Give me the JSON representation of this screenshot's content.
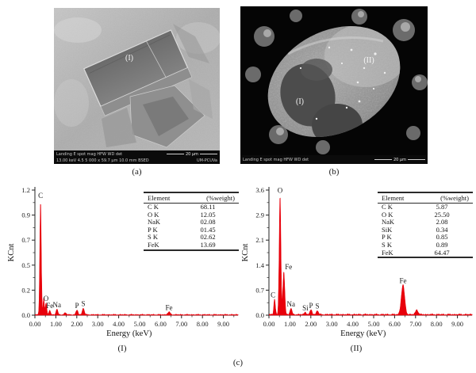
{
  "figure": {
    "caption_a": "(a)",
    "caption_b": "(b)",
    "caption_c": "(c)",
    "caption_spectrum_1": "(I)",
    "caption_spectrum_2": "(II)",
    "panel_a": {
      "region_label": "(I)",
      "databar": {
        "line1": "Landing E spot   mag      HFW      WD     det",
        "line2": "13.00 keV  4.5  5 000 x  59.7 μm  10.0 mm  BSED",
        "credit": "UM-PCUVa",
        "scalebar": "20 μm"
      }
    },
    "panel_b": {
      "region_label_1": "(I)",
      "region_label_2": "(II)",
      "databar": {
        "line1": "Landing E spot   mag      HFW      WD     det",
        "scalebar": "20 μm"
      }
    }
  },
  "chart_data": [
    {
      "type": "area",
      "panel": "(I)",
      "xlabel": "Energy (keV)",
      "ylabel": "KCnt",
      "x_ticks": [
        "0.00",
        "1.00",
        "2.00",
        "3.00",
        "4.00",
        "5.00",
        "6.00",
        "7.00",
        "8.00",
        "9.00"
      ],
      "y_ticks": [
        "0.0",
        "0.2",
        "0.5",
        "0.7",
        "0.9",
        "1.2"
      ],
      "xlim": [
        0,
        9.7
      ],
      "ylim": [
        0,
        1.2
      ],
      "grid": false,
      "line_color": "#e8000b",
      "baseline_noise": 0.008,
      "peaks": [
        {
          "label": "C",
          "center": 0.27,
          "height": 1.1,
          "sigma": 0.035
        },
        {
          "label": "",
          "center": 0.42,
          "height": 0.16,
          "sigma": 0.03
        },
        {
          "label": "O",
          "center": 0.53,
          "height": 0.115,
          "sigma": 0.035
        },
        {
          "label": "Fe",
          "center": 0.71,
          "height": 0.045,
          "sigma": 0.035
        },
        {
          "label": "Na",
          "center": 1.05,
          "height": 0.055,
          "sigma": 0.04
        },
        {
          "label": "",
          "center": 1.45,
          "height": 0.018,
          "sigma": 0.05
        },
        {
          "label": "P",
          "center": 2.01,
          "height": 0.045,
          "sigma": 0.045
        },
        {
          "label": "S",
          "center": 2.31,
          "height": 0.065,
          "sigma": 0.045
        },
        {
          "label": "Fe",
          "center": 6.4,
          "height": 0.025,
          "sigma": 0.06
        }
      ],
      "table": {
        "headers": [
          "Element",
          "(%weight)"
        ],
        "rows": [
          [
            "C K",
            "68.11"
          ],
          [
            "O K",
            "12.05"
          ],
          [
            "NaK",
            "02.08"
          ],
          [
            "P K",
            "01.45"
          ],
          [
            "S K",
            "02.62"
          ],
          [
            "FeK",
            "13.69"
          ]
        ]
      }
    },
    {
      "type": "area",
      "panel": "(II)",
      "xlabel": "Energy (keV)",
      "ylabel": "KCnt",
      "x_ticks": [
        "0.00",
        "1.00",
        "2.00",
        "3.00",
        "4.00",
        "5.00",
        "6.00",
        "7.00",
        "8.00",
        "9.00"
      ],
      "y_ticks": [
        "0.0",
        "0.7",
        "1.4",
        "2.1",
        "2.9",
        "3.6"
      ],
      "xlim": [
        0,
        9.7
      ],
      "ylim": [
        0,
        3.6
      ],
      "grid": false,
      "line_color": "#e8000b",
      "baseline_noise": 0.032,
      "peaks": [
        {
          "label": "C",
          "center": 0.27,
          "height": 0.45,
          "sigma": 0.035,
          "label_dx": -2
        },
        {
          "label": "O",
          "center": 0.53,
          "height": 3.45,
          "sigma": 0.04
        },
        {
          "label": "Fe",
          "center": 0.71,
          "height": 1.25,
          "sigma": 0.045,
          "label_dx": 6
        },
        {
          "label": "Na",
          "center": 1.05,
          "height": 0.18,
          "sigma": 0.045
        },
        {
          "label": "Si",
          "center": 1.74,
          "height": 0.07,
          "sigma": 0.045
        },
        {
          "label": "P",
          "center": 2.01,
          "height": 0.14,
          "sigma": 0.045
        },
        {
          "label": "S",
          "center": 2.31,
          "height": 0.12,
          "sigma": 0.045
        },
        {
          "label": "Fe",
          "center": 6.4,
          "height": 0.85,
          "sigma": 0.08
        },
        {
          "label": "",
          "center": 7.06,
          "height": 0.14,
          "sigma": 0.06
        }
      ],
      "table": {
        "headers": [
          "Element",
          "(%weight)"
        ],
        "rows": [
          [
            "C K",
            "5.87"
          ],
          [
            "O K",
            "25.50"
          ],
          [
            "NaK",
            "2.08"
          ],
          [
            "SiK",
            "0.34"
          ],
          [
            "P K",
            "0.85"
          ],
          [
            "S K",
            "0.89"
          ],
          [
            "FeK",
            "64.47"
          ]
        ]
      }
    }
  ]
}
